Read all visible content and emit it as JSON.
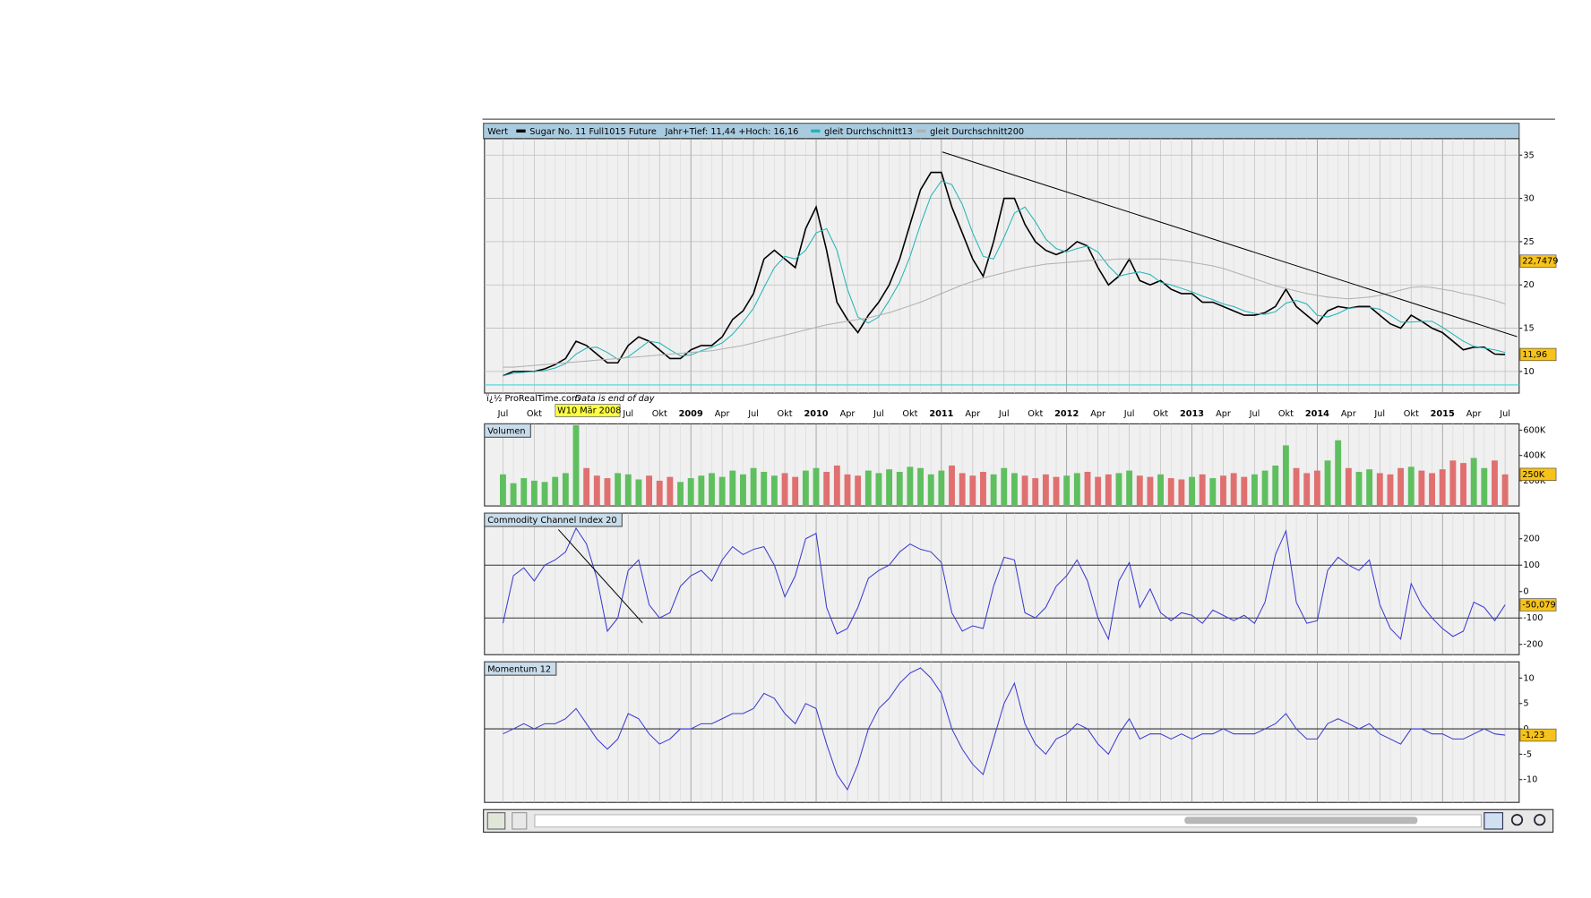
{
  "chart_data": [
    {
      "type": "line",
      "label": "Wert",
      "annotation": "Jahr+Tief: 11,44 +Hoch: 16,16",
      "watermark": "ï¿½ ProRealTime.com",
      "note": "Data is end of day",
      "cursor_label": "W10 Mär 2008",
      "categories": [
        "Jul",
        null,
        null,
        "Okt",
        null,
        null,
        null,
        null,
        null,
        null,
        null,
        null,
        "Jul",
        null,
        null,
        "Okt",
        null,
        null,
        "2009",
        null,
        null,
        "Apr",
        null,
        null,
        "Jul",
        null,
        null,
        "Okt",
        null,
        null,
        "2010",
        null,
        null,
        "Apr",
        null,
        null,
        "Jul",
        null,
        null,
        "Okt",
        null,
        null,
        "2011",
        null,
        null,
        "Apr",
        null,
        null,
        "Jul",
        null,
        null,
        "Okt",
        null,
        null,
        "2012",
        null,
        null,
        "Apr",
        null,
        null,
        "Jul",
        null,
        null,
        "Okt",
        null,
        null,
        "2013",
        null,
        null,
        "Apr",
        null,
        null,
        "Jul",
        null,
        null,
        "Okt",
        null,
        null,
        "2014",
        null,
        null,
        "Apr",
        null,
        null,
        "Jul",
        null,
        null,
        "Okt",
        null,
        null,
        "2015",
        null,
        null,
        "Apr",
        null,
        null,
        "Jul"
      ],
      "series": [
        {
          "name": "Sugar No. 11 Full1015 Future",
          "color": "#000000",
          "values": [
            9.5,
            10,
            10,
            10,
            10.3,
            10.8,
            11.5,
            13.5,
            13,
            12,
            11,
            11,
            13,
            14,
            13.5,
            12.5,
            11.5,
            11.5,
            12.5,
            13,
            13,
            14,
            16,
            17,
            19,
            23,
            24,
            23,
            22,
            26.5,
            29,
            24,
            18,
            16,
            14.5,
            16.5,
            18,
            20,
            23,
            27,
            31,
            33,
            33,
            29,
            26,
            23,
            21,
            25,
            30,
            30,
            27,
            25,
            24,
            23.5,
            24,
            25,
            24.5,
            22,
            20,
            21,
            23,
            20.5,
            20,
            20.5,
            19.5,
            19,
            19,
            18,
            18,
            17.5,
            17,
            16.5,
            16.5,
            16.8,
            17.5,
            19.5,
            17.5,
            16.5,
            15.5,
            17,
            17.5,
            17.3,
            17.5,
            17.5,
            16.5,
            15.5,
            15,
            16.5,
            15.8,
            15,
            14.5,
            13.5,
            12.5,
            12.8,
            12.8,
            12,
            11.96
          ]
        },
        {
          "name": "gleit Durchschnitt13",
          "color": "#22b5b5",
          "values": [
            9.5,
            9.8,
            9.9,
            10,
            10.1,
            10.4,
            10.9,
            12,
            12.7,
            12.8,
            12.2,
            11.4,
            11.7,
            12.6,
            13.5,
            13.3,
            12.5,
            11.8,
            11.9,
            12.4,
            12.8,
            13.3,
            14.3,
            15.7,
            17.3,
            19.7,
            22,
            23.3,
            23,
            24,
            26,
            26.5,
            24,
            19.5,
            16.3,
            15.6,
            16.3,
            18.2,
            20.3,
            23.3,
            27,
            30.3,
            32,
            31.6,
            29.3,
            26,
            23.3,
            23,
            25.5,
            28.3,
            29,
            27.3,
            25.3,
            24.2,
            23.8,
            24.2,
            24.5,
            23.8,
            22.2,
            21,
            21.3,
            21.5,
            21.2,
            20.3,
            20,
            19.6,
            19.2,
            18.7,
            18.3,
            17.8,
            17.5,
            17,
            16.7,
            16.6,
            16.9,
            17.9,
            18.2,
            17.8,
            16.5,
            16.3,
            16.7,
            17.3,
            17.4,
            17.4,
            17.2,
            16.5,
            15.7,
            15.7,
            15.8,
            15.8,
            15.1,
            14.3,
            13.5,
            12.9,
            12.7,
            12.5,
            12.2
          ]
        },
        {
          "name": "gleit Durchschnitt200",
          "color": "#b0b0b0",
          "values": [
            10.5,
            10.5,
            10.6,
            10.7,
            10.8,
            10.9,
            11,
            11.1,
            11.2,
            11.3,
            11.4,
            11.5,
            11.6,
            11.7,
            11.8,
            11.9,
            12,
            12.1,
            12.2,
            12.3,
            12.4,
            12.6,
            12.8,
            13,
            13.3,
            13.6,
            13.9,
            14.2,
            14.5,
            14.8,
            15.1,
            15.4,
            15.6,
            15.8,
            16,
            16.2,
            16.5,
            16.8,
            17.2,
            17.6,
            18,
            18.5,
            19,
            19.5,
            20,
            20.4,
            20.8,
            21.1,
            21.4,
            21.7,
            22,
            22.2,
            22.4,
            22.5,
            22.6,
            22.7,
            22.8,
            22.9,
            22.9,
            23,
            23,
            23,
            23,
            23,
            22.9,
            22.8,
            22.6,
            22.4,
            22.2,
            21.9,
            21.5,
            21.1,
            20.7,
            20.3,
            19.9,
            19.6,
            19.3,
            19,
            18.8,
            18.6,
            18.5,
            18.4,
            18.5,
            18.6,
            18.8,
            19.1,
            19.4,
            19.7,
            19.8,
            19.7,
            19.5,
            19.3,
            19,
            18.8,
            18.5,
            18.2,
            17.8
          ]
        }
      ],
      "ylim": [
        7.5,
        36.9
      ],
      "yticks": [
        10,
        15,
        20,
        25,
        30,
        35
      ],
      "grid": true,
      "current": [
        {
          "value": 22.7479,
          "label": "22,7479"
        },
        {
          "value": 11.96,
          "label": "11,96"
        }
      ]
    },
    {
      "type": "bar",
      "title": "Volumen",
      "up_color": "#5fbf5f",
      "down_color": "#e07070",
      "values": [
        250000,
        180000,
        220000,
        200000,
        190000,
        230000,
        260000,
        640000,
        300000,
        240000,
        220000,
        260000,
        250000,
        210000,
        240000,
        200000,
        230000,
        190000,
        220000,
        240000,
        260000,
        230000,
        280000,
        250000,
        300000,
        270000,
        240000,
        260000,
        230000,
        280000,
        300000,
        270000,
        320000,
        250000,
        240000,
        280000,
        260000,
        290000,
        270000,
        310000,
        300000,
        250000,
        280000,
        320000,
        260000,
        240000,
        270000,
        250000,
        300000,
        260000,
        240000,
        220000,
        250000,
        230000,
        240000,
        260000,
        270000,
        230000,
        250000,
        260000,
        280000,
        240000,
        230000,
        250000,
        220000,
        210000,
        230000,
        250000,
        220000,
        240000,
        260000,
        230000,
        250000,
        280000,
        320000,
        480000,
        300000,
        260000,
        280000,
        360000,
        520000,
        300000,
        270000,
        290000,
        260000,
        250000,
        300000,
        310000,
        280000,
        260000,
        290000,
        360000,
        340000,
        380000,
        300000,
        360000,
        250000
      ],
      "ylim": [
        0,
        650000
      ],
      "yticks": [
        {
          "value": 200000,
          "label": "200K"
        },
        {
          "value": 400000,
          "label": "400K"
        },
        {
          "value": 600000,
          "label": "600K"
        }
      ],
      "current": [
        {
          "value": 250000,
          "label": "250K"
        }
      ]
    },
    {
      "type": "line",
      "series": [
        {
          "name": "Commodity Channel Index 20",
          "color": "#3b3bd0",
          "values": [
            -120,
            60,
            90,
            40,
            100,
            120,
            150,
            240,
            180,
            50,
            -150,
            -100,
            80,
            120,
            -50,
            -100,
            -80,
            20,
            60,
            80,
            40,
            120,
            170,
            140,
            160,
            170,
            100,
            -20,
            60,
            200,
            220,
            -60,
            -160,
            -140,
            -60,
            50,
            80,
            100,
            150,
            180,
            160,
            150,
            110,
            -80,
            -150,
            -130,
            -140,
            20,
            130,
            120,
            -80,
            -100,
            -60,
            20,
            60,
            120,
            40,
            -100,
            -180,
            40,
            110,
            -60,
            10,
            -80,
            -110,
            -80,
            -90,
            -120,
            -70,
            -90,
            -110,
            -90,
            -120,
            -40,
            140,
            230,
            -40,
            -120,
            -110,
            80,
            130,
            100,
            80,
            120,
            -50,
            -140,
            -180,
            30,
            -50,
            -100,
            -140,
            -170,
            -150,
            -40,
            -60,
            -110,
            -50.079
          ]
        }
      ],
      "ylim": [
        -239,
        297
      ],
      "yticks": [
        -200,
        -100,
        0,
        100,
        200
      ],
      "ref_lines": [
        -100,
        100
      ],
      "current": [
        {
          "value": -50.079,
          "label": "-50,079"
        }
      ]
    },
    {
      "type": "line",
      "series": [
        {
          "name": "Momentum 12",
          "color": "#3b3bd0",
          "values": [
            -1,
            0,
            1,
            0,
            1,
            1,
            2,
            4,
            1,
            -2,
            -4,
            -2,
            3,
            2,
            -1,
            -3,
            -2,
            0,
            0,
            1,
            1,
            2,
            3,
            3,
            4,
            7,
            6,
            3,
            1,
            5,
            4,
            -3,
            -9,
            -12,
            -7,
            0,
            4,
            6,
            9,
            11,
            12,
            10,
            7,
            0,
            -4,
            -7,
            -9,
            -2,
            5,
            9,
            1,
            -3,
            -5,
            -2,
            -1,
            1,
            0,
            -3,
            -5,
            -1,
            2,
            -2,
            -1,
            -1,
            -2,
            -1,
            -2,
            -1,
            -1,
            0,
            -1,
            -1,
            -1,
            0,
            1,
            3,
            0,
            -2,
            -2,
            1,
            2,
            1,
            0,
            1,
            -1,
            -2,
            -3,
            0,
            0,
            -1,
            -1,
            -2,
            -2,
            -1,
            0,
            -1,
            -1.23
          ]
        }
      ],
      "ylim": [
        -14.5,
        13.2
      ],
      "yticks": [
        -10,
        -5,
        0,
        5,
        10
      ],
      "ref_lines": [
        0
      ],
      "current": [
        {
          "value": -1.23,
          "label": "-1,23"
        }
      ]
    }
  ]
}
